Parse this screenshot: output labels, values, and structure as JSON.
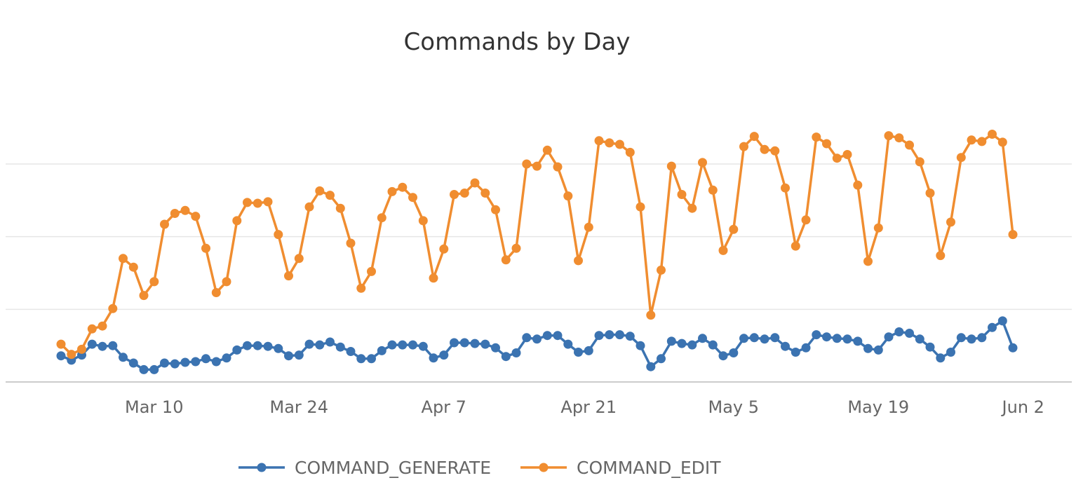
{
  "chart_data": {
    "type": "line",
    "title": "Commands by Day",
    "xlabel": "",
    "ylabel": "",
    "x_start": "2024-03-01",
    "x_tick_labels": [
      "Mar 10",
      "Mar 24",
      "Apr 7",
      "Apr 21",
      "May 5",
      "May 19",
      "Jun 2"
    ],
    "x_tick_dates": [
      "2024-03-10",
      "2024-03-24",
      "2024-04-07",
      "2024-04-21",
      "2024-05-05",
      "2024-05-19",
      "2024-06-02"
    ],
    "x_range": [
      "2024-02-24",
      "2024-06-04"
    ],
    "ylim": [
      0,
      300
    ],
    "y_gridlines": [
      100,
      200,
      300
    ],
    "y_tick_labels_visible": false,
    "grid": true,
    "legend_position": "bottom-center",
    "series": [
      {
        "name": "COMMAND_GENERATE",
        "color": "#3b73b1",
        "values": [
          36,
          30,
          37,
          52,
          49,
          50,
          34,
          26,
          17,
          17,
          26,
          25,
          27,
          28,
          32,
          28,
          33,
          44,
          50,
          50,
          49,
          46,
          36,
          37,
          52,
          51,
          55,
          48,
          42,
          32,
          32,
          43,
          51,
          51,
          51,
          49,
          33,
          37,
          54,
          54,
          53,
          52,
          47,
          35,
          40,
          61,
          59,
          64,
          64,
          52,
          41,
          43,
          64,
          65,
          65,
          63,
          50,
          21,
          32,
          56,
          53,
          51,
          60,
          51,
          36,
          40,
          60,
          61,
          59,
          61,
          49,
          41,
          47,
          65,
          62,
          60,
          59,
          56,
          46,
          44,
          62,
          69,
          67,
          59,
          48,
          33,
          41,
          61,
          59,
          61,
          75,
          84,
          47
        ]
      },
      {
        "name": "COMMAND_EDIT",
        "color": "#f08d30",
        "values": [
          52,
          38,
          45,
          73,
          77,
          101,
          170,
          158,
          119,
          138,
          217,
          232,
          236,
          228,
          184,
          123,
          138,
          222,
          247,
          246,
          248,
          203,
          146,
          170,
          241,
          263,
          257,
          239,
          191,
          129,
          152,
          226,
          262,
          268,
          254,
          222,
          143,
          183,
          258,
          260,
          274,
          260,
          237,
          168,
          184,
          300,
          297,
          319,
          296,
          256,
          167,
          213,
          332,
          329,
          327,
          316,
          241,
          92,
          154,
          297,
          258,
          239,
          302,
          264,
          181,
          210,
          324,
          338,
          320,
          318,
          267,
          187,
          223,
          337,
          328,
          308,
          313,
          271,
          166,
          212,
          339,
          336,
          326,
          303,
          260,
          174,
          220,
          309,
          333,
          331,
          341,
          330,
          203
        ]
      }
    ]
  }
}
